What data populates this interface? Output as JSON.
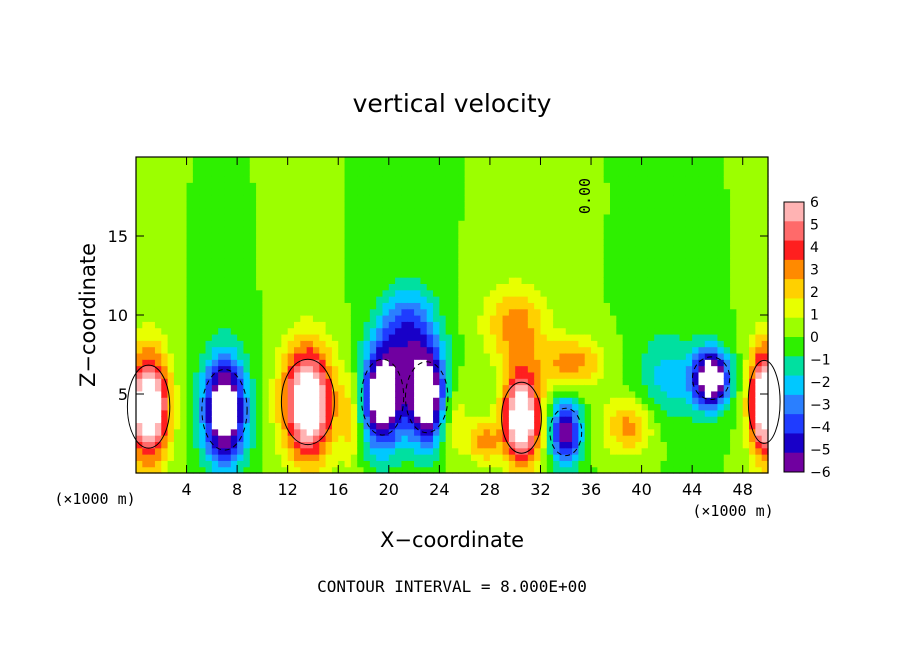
{
  "chart_data": {
    "type": "heatmap",
    "title": "vertical velocity",
    "xlabel": "X−coordinate",
    "ylabel": "Z−coordinate",
    "x_unit_left": "(×1000 m)",
    "x_unit_right": "(×1000 m)",
    "xlim": [
      0,
      50
    ],
    "ylim": [
      0,
      20
    ],
    "x_ticks": [
      4,
      8,
      12,
      16,
      20,
      24,
      28,
      32,
      36,
      40,
      44,
      48
    ],
    "y_ticks": [
      5,
      10,
      15
    ],
    "colorbar": {
      "range": [
        -6,
        6
      ],
      "labels": [
        "6",
        "5",
        "4",
        "3",
        "2",
        "1",
        "0",
        "−1",
        "−2",
        "−3",
        "−4",
        "−5",
        "−6"
      ],
      "colors": [
        "#ffb3b3",
        "#ff6a6a",
        "#ff1f1f",
        "#ff8a00",
        "#ffd000",
        "#e8ff00",
        "#9cff00",
        "#2ef000",
        "#00e0a0",
        "#00c8ff",
        "#2a7fff",
        "#1f3cff",
        "#1800c8",
        "#7000a0"
      ]
    },
    "contour_label": "0.00",
    "footer": "CONTOUR INTERVAL = 8.000E+00",
    "features": [
      {
        "x": 1.0,
        "z": 4.2,
        "w": 8,
        "r": 1.6,
        "h": 3.5
      },
      {
        "x": 7.0,
        "z": 4.0,
        "w": -8,
        "r": 1.7,
        "h": 3.4
      },
      {
        "x": 13.6,
        "z": 4.5,
        "w": 8,
        "r": 2.0,
        "h": 3.6
      },
      {
        "x": 19.5,
        "z": 4.8,
        "w": -8,
        "r": 1.6,
        "h": 3.2
      },
      {
        "x": 23.0,
        "z": 4.8,
        "w": -8,
        "r": 1.6,
        "h": 3.0
      },
      {
        "x": 21.5,
        "z": 9.0,
        "w": -4,
        "r": 2.2,
        "h": 2.8
      },
      {
        "x": 30.5,
        "z": 3.5,
        "w": 8,
        "r": 1.5,
        "h": 3.0
      },
      {
        "x": 30.0,
        "z": 9.5,
        "w": 3,
        "r": 2.5,
        "h": 2.5
      },
      {
        "x": 34.0,
        "z": 2.6,
        "w": -6,
        "r": 1.2,
        "h": 2.0
      },
      {
        "x": 34.5,
        "z": 7.0,
        "w": 3,
        "r": 2.5,
        "h": 1.6
      },
      {
        "x": 39.0,
        "z": 3.0,
        "w": 3,
        "r": 2.0,
        "h": 1.8
      },
      {
        "x": 42.0,
        "z": 6.0,
        "w": -2,
        "r": 2.5,
        "h": 3.0
      },
      {
        "x": 45.5,
        "z": 6.0,
        "w": -8,
        "r": 1.4,
        "h": 1.8
      },
      {
        "x": 49.7,
        "z": 4.5,
        "w": 8,
        "r": 1.2,
        "h": 3.5
      },
      {
        "x": 27.5,
        "z": 2.0,
        "w": 3,
        "r": 1.2,
        "h": 1.3
      },
      {
        "x": 17.0,
        "z": 3.5,
        "w": 2,
        "r": 0.9,
        "h": 3.0
      },
      {
        "x": 25.0,
        "z": 3.5,
        "w": 2,
        "r": 1.3,
        "h": 2.5
      }
    ]
  }
}
